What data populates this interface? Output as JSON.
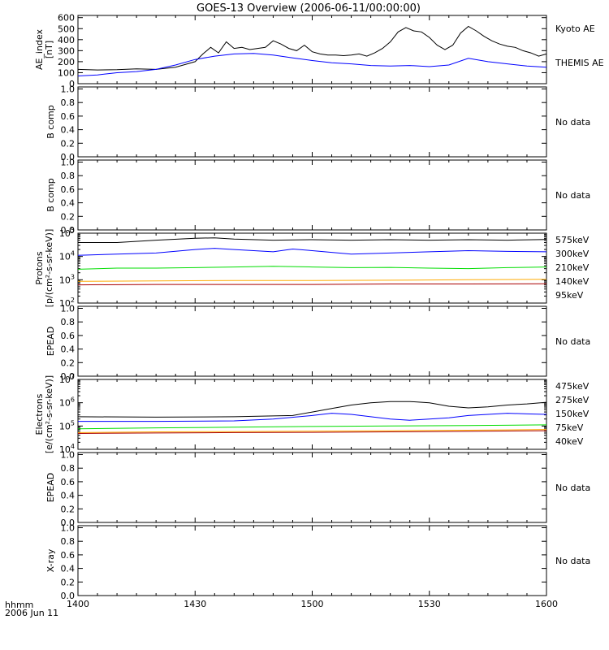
{
  "title": "GOES-13 Overview (2006-06-11/00:00:00)",
  "x_axis": {
    "ticks": [
      "1400",
      "1430",
      "1500",
      "1530",
      "1600"
    ],
    "label_line1": "hhmm",
    "label_line2": "2006 Jun 11"
  },
  "no_data_label": "No data",
  "colors": {
    "black": "#000000",
    "blue": "#0000ff",
    "green": "#00dd00",
    "orange": "#ffaa00",
    "darkred": "#aa0000"
  },
  "chart_data": [
    {
      "type": "line",
      "ylabel_line1": "AE_index",
      "ylabel_line2": "[nT]",
      "yticks": [
        "0",
        "100",
        "200",
        "300",
        "400",
        "500",
        "600"
      ],
      "ylim": [
        0,
        620
      ],
      "xlim": [
        0,
        120
      ],
      "series": [
        {
          "name": "Kyoto AE",
          "color": "#000000",
          "x": [
            0,
            5,
            10,
            15,
            20,
            25,
            30,
            32,
            34,
            36,
            38,
            40,
            42,
            44,
            46,
            48,
            50,
            52,
            54,
            56,
            58,
            60,
            62,
            64,
            66,
            68,
            70,
            72,
            74,
            76,
            78,
            80,
            82,
            84,
            86,
            88,
            90,
            92,
            94,
            96,
            98,
            100,
            102,
            104,
            106,
            108,
            110,
            112,
            114,
            116,
            118,
            120
          ],
          "values": [
            130,
            125,
            128,
            135,
            130,
            150,
            200,
            270,
            330,
            280,
            380,
            320,
            330,
            310,
            320,
            330,
            390,
            360,
            320,
            300,
            350,
            290,
            270,
            260,
            260,
            255,
            260,
            270,
            250,
            280,
            320,
            380,
            470,
            510,
            480,
            470,
            420,
            350,
            310,
            350,
            460,
            520,
            480,
            430,
            390,
            360,
            340,
            330,
            300,
            280,
            250,
            270
          ]
        },
        {
          "name": "THEMIS AE",
          "color": "#0000ff",
          "x": [
            0,
            5,
            10,
            15,
            20,
            25,
            30,
            35,
            40,
            45,
            50,
            55,
            60,
            65,
            70,
            75,
            80,
            85,
            90,
            95,
            100,
            105,
            110,
            115,
            120
          ],
          "values": [
            70,
            80,
            100,
            110,
            130,
            170,
            220,
            250,
            270,
            275,
            260,
            235,
            210,
            190,
            180,
            165,
            160,
            165,
            155,
            170,
            230,
            200,
            180,
            160,
            150
          ]
        }
      ]
    },
    {
      "type": "line",
      "ylabel_line1": "B comp",
      "yticks": [
        "0.0",
        "0.2",
        "0.4",
        "0.6",
        "0.8",
        "1.0"
      ],
      "ylim": [
        0,
        1.03
      ],
      "series": []
    },
    {
      "type": "line",
      "ylabel_line1": "B comp",
      "yticks": [
        "0.0",
        "0.2",
        "0.4",
        "0.6",
        "0.8",
        "1.0"
      ],
      "ylim": [
        0,
        1.03
      ],
      "series": []
    },
    {
      "type": "line",
      "ylabel_line1": "Protons",
      "ylabel_line2": "[p/(cm²-s-sr-keV)]",
      "yticks_log": [
        2,
        3,
        4,
        5
      ],
      "ylim_log": [
        2,
        5
      ],
      "series": [
        {
          "name": "575keV",
          "label_color": "#aa0000",
          "color": "#000000",
          "x": [
            0,
            10,
            20,
            30,
            35,
            40,
            50,
            60,
            70,
            80,
            90,
            100,
            110,
            120
          ],
          "values": [
            4.6,
            4.6,
            4.7,
            4.78,
            4.8,
            4.75,
            4.7,
            4.72,
            4.7,
            4.72,
            4.7,
            4.72,
            4.7,
            4.73
          ]
        },
        {
          "name": "300keV",
          "label_color": "#ffaa00",
          "color": "#0000ff",
          "x": [
            0,
            10,
            20,
            30,
            35,
            40,
            50,
            55,
            60,
            70,
            80,
            90,
            100,
            110,
            120
          ],
          "values": [
            4.05,
            4.1,
            4.15,
            4.3,
            4.35,
            4.3,
            4.2,
            4.32,
            4.25,
            4.1,
            4.15,
            4.2,
            4.25,
            4.22,
            4.2
          ]
        },
        {
          "name": "210keV",
          "label_color": "#00dd00",
          "color": "#00dd00",
          "x": [
            0,
            10,
            20,
            30,
            40,
            50,
            60,
            70,
            80,
            90,
            100,
            110,
            120
          ],
          "values": [
            3.45,
            3.5,
            3.5,
            3.52,
            3.55,
            3.58,
            3.55,
            3.52,
            3.53,
            3.5,
            3.48,
            3.52,
            3.55
          ]
        },
        {
          "name": "140keV",
          "label_color": "#0000ff",
          "color": "#ffaa00",
          "x": [
            0,
            20,
            40,
            60,
            80,
            100,
            120
          ],
          "values": [
            2.93,
            2.95,
            2.97,
            2.97,
            2.98,
            3.0,
            3.02
          ]
        },
        {
          "name": "95keV",
          "label_color": "#000000",
          "color": "#aa0000",
          "x": [
            0,
            20,
            40,
            60,
            80,
            100,
            120
          ],
          "values": [
            2.78,
            2.8,
            2.8,
            2.8,
            2.82,
            2.82,
            2.83
          ]
        }
      ]
    },
    {
      "type": "line",
      "ylabel_line1": "EPEAD",
      "yticks": [
        "0.0",
        "0.2",
        "0.4",
        "0.6",
        "0.8",
        "1.0"
      ],
      "ylim": [
        0,
        1.03
      ],
      "series": []
    },
    {
      "type": "line",
      "ylabel_line1": "Electrons",
      "ylabel_line2": "[e/(cm²-s-sr-keV)]",
      "yticks_log": [
        4,
        5,
        6,
        7
      ],
      "ylim_log": [
        4,
        7
      ],
      "series": [
        {
          "name": "475keV",
          "label_color": "#aa0000",
          "color": "#000000",
          "x": [
            0,
            20,
            40,
            55,
            60,
            65,
            70,
            75,
            80,
            85,
            90,
            95,
            100,
            105,
            110,
            115,
            120
          ],
          "values": [
            5.4,
            5.38,
            5.4,
            5.45,
            5.6,
            5.75,
            5.9,
            6.0,
            6.05,
            6.05,
            6.0,
            5.85,
            5.78,
            5.82,
            5.9,
            5.95,
            6.02
          ]
        },
        {
          "name": "275keV",
          "label_color": "#ffaa00",
          "color": "#0000ff",
          "x": [
            0,
            20,
            40,
            50,
            60,
            65,
            70,
            75,
            80,
            85,
            90,
            95,
            100,
            105,
            110,
            115,
            120
          ],
          "values": [
            5.2,
            5.2,
            5.22,
            5.3,
            5.45,
            5.55,
            5.5,
            5.4,
            5.3,
            5.25,
            5.3,
            5.35,
            5.45,
            5.5,
            5.55,
            5.52,
            5.5
          ]
        },
        {
          "name": "150keV",
          "label_color": "#00dd00",
          "color": "#00dd00",
          "x": [
            0,
            20,
            40,
            60,
            80,
            100,
            120
          ],
          "values": [
            4.88,
            4.92,
            4.95,
            4.98,
            5.0,
            5.02,
            5.05
          ]
        },
        {
          "name": "75keV",
          "label_color": "#0000ff",
          "color": "#ffaa00",
          "x": [
            0,
            20,
            40,
            60,
            80,
            100,
            120
          ],
          "values": [
            4.72,
            4.75,
            4.76,
            4.78,
            4.8,
            4.82,
            4.85
          ]
        },
        {
          "name": "40keV",
          "label_color": "#000000",
          "color": "#aa0000",
          "x": [
            0,
            20,
            40,
            60,
            80,
            100,
            120
          ],
          "values": [
            4.68,
            4.7,
            4.72,
            4.73,
            4.75,
            4.77,
            4.8
          ]
        }
      ]
    },
    {
      "type": "line",
      "ylabel_line1": "EPEAD",
      "yticks": [
        "0.0",
        "0.2",
        "0.4",
        "0.6",
        "0.8",
        "1.0"
      ],
      "ylim": [
        0,
        1.03
      ],
      "series": []
    },
    {
      "type": "line",
      "ylabel_line1": "X-ray",
      "yticks": [
        "0.0",
        "0.2",
        "0.4",
        "0.6",
        "0.8",
        "1.0"
      ],
      "ylim": [
        0,
        1.03
      ],
      "series": []
    }
  ]
}
